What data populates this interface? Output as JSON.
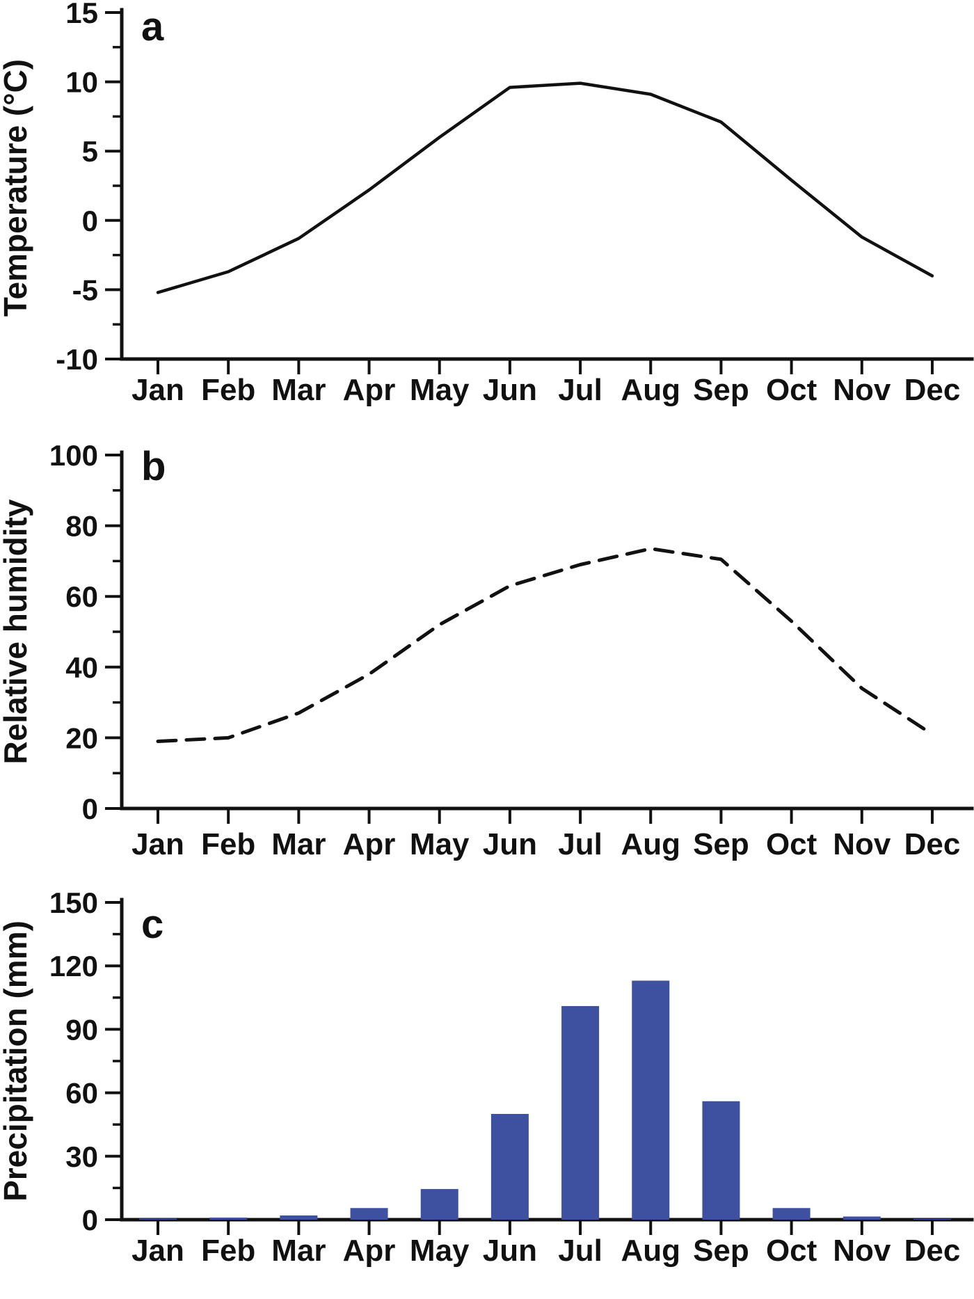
{
  "figure": {
    "background_color": "#ffffff",
    "text_color": "#111111",
    "months": [
      "Jan",
      "Feb",
      "Mar",
      "Apr",
      "May",
      "Jun",
      "Jul",
      "Aug",
      "Sep",
      "Oct",
      "Nov",
      "Dec"
    ]
  },
  "chart_data": [
    {
      "type": "line",
      "panel_label": "a",
      "title": "",
      "xlabel": "",
      "ylabel": "Temperature (°C)",
      "categories": [
        "Jan",
        "Feb",
        "Mar",
        "Apr",
        "May",
        "Jun",
        "Jul",
        "Aug",
        "Sep",
        "Oct",
        "Nov",
        "Dec"
      ],
      "values": [
        -5.2,
        -3.7,
        -1.3,
        2.2,
        6.0,
        9.6,
        9.9,
        9.1,
        7.1,
        2.9,
        -1.2,
        -4.0
      ],
      "ylim": [
        -10,
        15
      ],
      "y_major_step": 5,
      "y_minor_step": 2.5,
      "y_tick_labels": [
        "-10",
        "-5",
        "0",
        "5",
        "10",
        "15"
      ],
      "line_style": "solid",
      "line_color": "#111111",
      "grid": "off",
      "legend": "none"
    },
    {
      "type": "line",
      "panel_label": "b",
      "title": "",
      "xlabel": "",
      "ylabel": "Relative humidity",
      "categories": [
        "Jan",
        "Feb",
        "Mar",
        "Apr",
        "May",
        "Jun",
        "Jul",
        "Aug",
        "Sep",
        "Oct",
        "Nov",
        "Dec"
      ],
      "values": [
        19,
        20,
        27,
        38,
        52,
        63,
        69,
        73.5,
        70.5,
        53,
        34,
        21
      ],
      "ylim": [
        0,
        100
      ],
      "y_major_step": 20,
      "y_minor_step": 10,
      "y_tick_labels": [
        "0",
        "20",
        "40",
        "60",
        "80",
        "100"
      ],
      "line_style": "dashed",
      "line_color": "#111111",
      "grid": "off",
      "legend": "none"
    },
    {
      "type": "bar",
      "panel_label": "c",
      "title": "",
      "xlabel": "",
      "ylabel": "Precipitation (mm)",
      "categories": [
        "Jan",
        "Feb",
        "Mar",
        "Apr",
        "May",
        "Jun",
        "Jul",
        "Aug",
        "Sep",
        "Oct",
        "Nov",
        "Dec"
      ],
      "values": [
        0.5,
        1,
        2,
        5.5,
        14.5,
        50,
        101,
        113,
        56,
        5.5,
        1.5,
        0.4
      ],
      "ylim": [
        0,
        150
      ],
      "y_major_step": 30,
      "y_minor_step": 15,
      "y_tick_labels": [
        "0",
        "30",
        "60",
        "90",
        "120",
        "150"
      ],
      "bar_color": "#3e50a0",
      "grid": "off",
      "legend": "none"
    }
  ]
}
